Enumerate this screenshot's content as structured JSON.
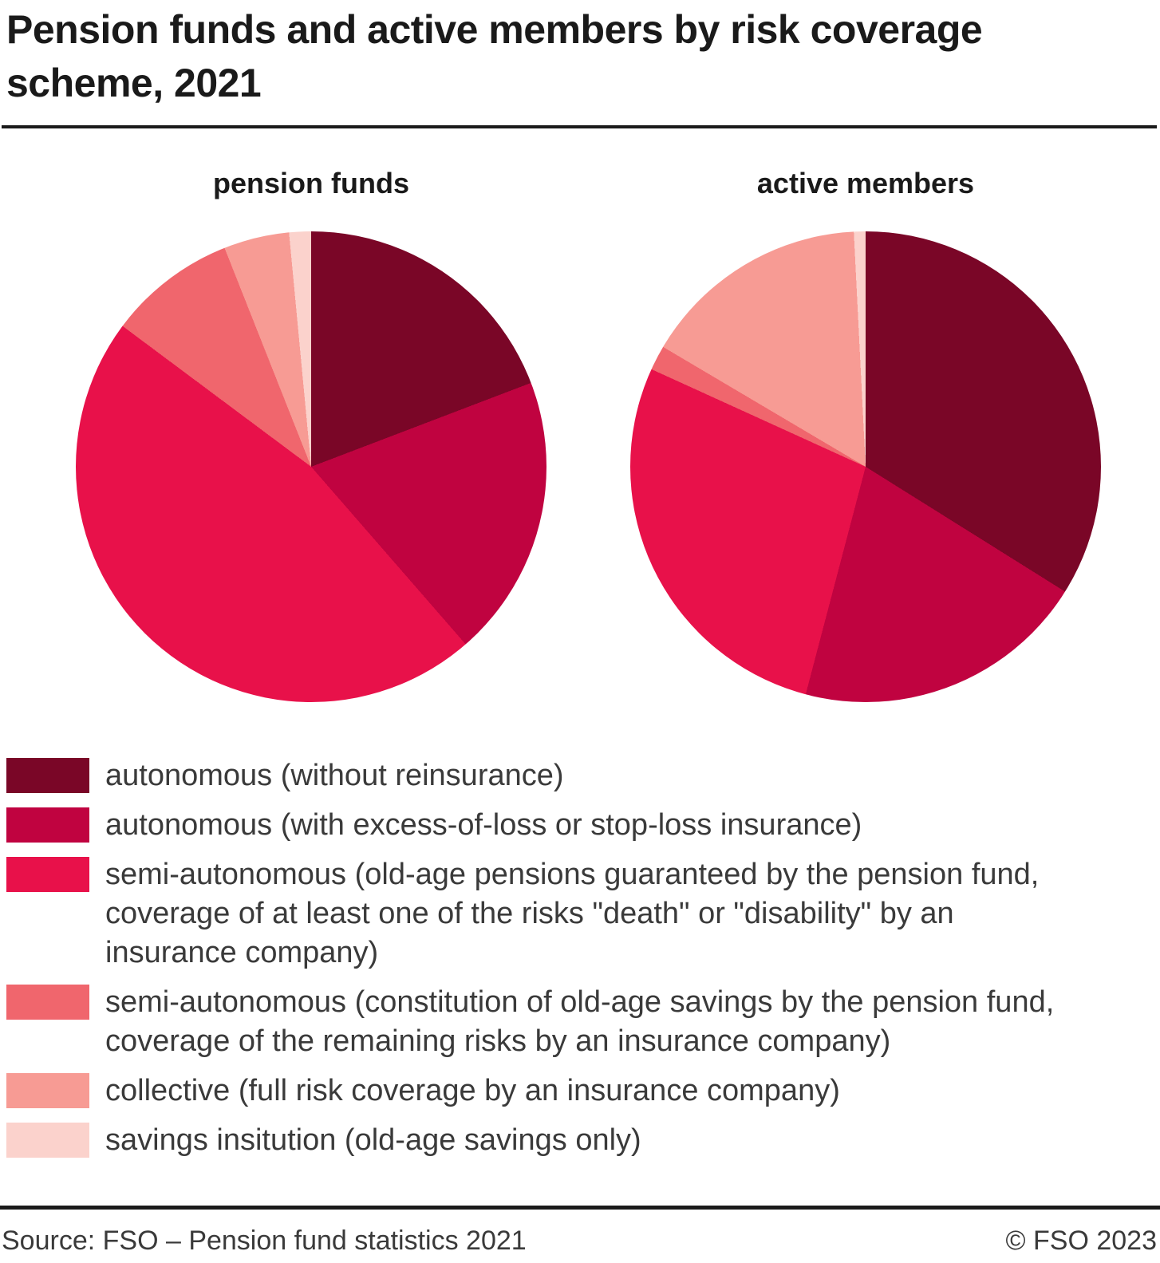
{
  "title": "Pension funds and active members by risk coverage\nscheme, 2021",
  "chart_data": [
    {
      "type": "pie",
      "title": "pension funds",
      "labels": [
        "autonomous (without reinsurance)",
        "autonomous (with excess-of-loss or stop-loss insurance)",
        "semi-autonomous (old-age pensions guaranteed by the pension fund, coverage of at least one of the risks \"death\" or \"disability\" by an insurance company)",
        "semi-autonomous (constitution of old-age savings by the pension fund, coverage of the remaining risks by an insurance company)",
        "collective (full risk coverage by an insurance company)",
        "savings insitution (old-age savings only)"
      ],
      "values": [
        19.2,
        19.4,
        46.6,
        8.8,
        4.5,
        1.5
      ],
      "values_unit": "%",
      "colors": [
        "#7A0627",
        "#C00340",
        "#E8114A",
        "#F0666D",
        "#F79B94",
        "#FBD2CC"
      ],
      "start_angle_deg": 0,
      "direction": "clockwise",
      "legend_position": "bottom"
    },
    {
      "type": "pie",
      "title": "active members",
      "labels": [
        "autonomous (without reinsurance)",
        "autonomous (with excess-of-loss or stop-loss insurance)",
        "semi-autonomous (old-age pensions guaranteed by the pension fund, coverage of at least one of the risks \"death\" or \"disability\" by an insurance company)",
        "semi-autonomous (constitution of old-age savings by the pension fund, coverage of the remaining risks by an insurance company)",
        "collective (full risk coverage by an insurance company)",
        "savings insitution (old-age savings only)"
      ],
      "values": [
        33.9,
        20.2,
        27.7,
        1.7,
        15.7,
        0.8
      ],
      "values_unit": "%",
      "colors": [
        "#7A0627",
        "#C00340",
        "#E8114A",
        "#F0666D",
        "#F79B94",
        "#FBD2CC"
      ],
      "start_angle_deg": 0,
      "direction": "clockwise",
      "legend_position": "bottom"
    }
  ],
  "legend": {
    "items": [
      {
        "label": "autonomous (without reinsurance)",
        "color": "#7A0627"
      },
      {
        "label": "autonomous (with excess-of-loss or stop-loss insurance)",
        "color": "#C00340"
      },
      {
        "label": "semi-autonomous (old-age pensions guaranteed by the pension fund,\ncoverage of at least one of the risks \"death\" or \"disability\" by an\ninsurance company)",
        "color": "#E8114A"
      },
      {
        "label": "semi-autonomous (constitution of old-age savings by the pension fund,\ncoverage of the remaining risks by an insurance company)",
        "color": "#F0666D"
      },
      {
        "label": "collective (full risk coverage by an insurance company)",
        "color": "#F79B94"
      },
      {
        "label": "savings insitution (old-age savings only)",
        "color": "#FBD2CC"
      }
    ]
  },
  "footer": {
    "source": "Source: FSO – Pension fund statistics 2021",
    "copyright": "© FSO 2023"
  }
}
